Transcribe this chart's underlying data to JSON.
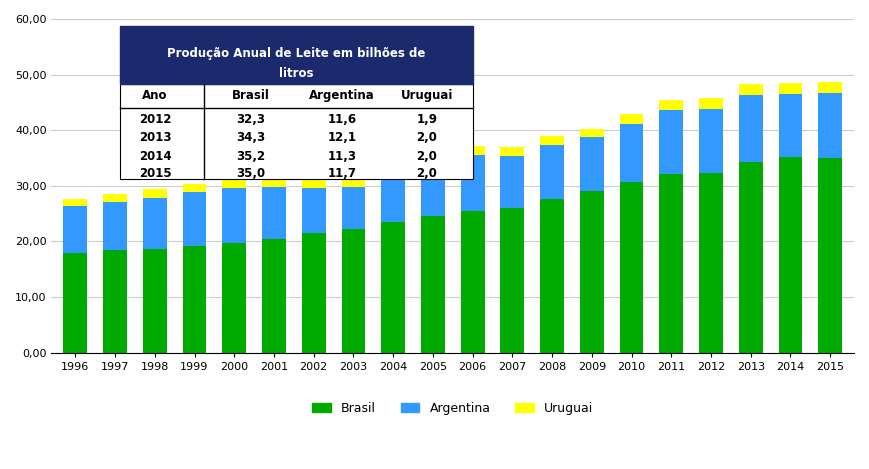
{
  "years": [
    1996,
    1997,
    1998,
    1999,
    2000,
    2001,
    2002,
    2003,
    2004,
    2005,
    2006,
    2007,
    2008,
    2009,
    2010,
    2011,
    2012,
    2013,
    2014,
    2015
  ],
  "brasil": [
    17.9,
    18.5,
    18.7,
    19.1,
    19.8,
    20.5,
    21.6,
    22.3,
    23.5,
    24.6,
    25.4,
    26.0,
    27.6,
    29.1,
    30.7,
    32.1,
    32.3,
    34.3,
    35.2,
    35.0
  ],
  "argentina": [
    8.5,
    8.6,
    9.2,
    9.8,
    9.8,
    9.3,
    8.0,
    7.5,
    9.2,
    10.0,
    10.2,
    9.4,
    9.8,
    9.6,
    10.5,
    11.5,
    11.6,
    12.1,
    11.3,
    11.7
  ],
  "uruguai": [
    1.3,
    1.4,
    1.5,
    1.4,
    1.4,
    1.5,
    1.4,
    1.3,
    1.5,
    1.6,
    1.6,
    1.5,
    1.6,
    1.6,
    1.7,
    1.9,
    1.9,
    2.0,
    2.0,
    2.0
  ],
  "color_brasil": "#00aa00",
  "color_argentina": "#3399ff",
  "color_uruguai": "#ffff00",
  "table_header_color": "#1a2a6c",
  "table_rows": [
    [
      "2012",
      "32,3",
      "11,6",
      "1,9"
    ],
    [
      "2013",
      "34,3",
      "12,1",
      "2,0"
    ],
    [
      "2014",
      "35,2",
      "11,3",
      "2,0"
    ],
    [
      "2015",
      "35,0",
      "11,7",
      "2,0"
    ]
  ],
  "table_cols": [
    "Ano",
    "Brasil",
    "Argentina",
    "Uruguai"
  ],
  "ylim": [
    0,
    60
  ],
  "yticks": [
    0,
    10,
    20,
    30,
    40,
    50,
    60
  ],
  "ytick_labels": [
    "0,00",
    "10,00",
    "20,00",
    "30,00",
    "40,00",
    "50,00",
    "60,00"
  ],
  "legend_labels": [
    "Brasil",
    "Argentina",
    "Uruguai"
  ],
  "background_color": "#ffffff",
  "grid_color": "#cccccc"
}
